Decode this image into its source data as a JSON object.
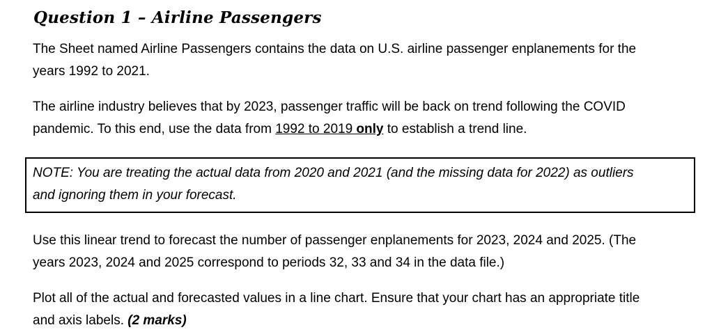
{
  "document": {
    "heading": "Question 1 – Airline Passengers",
    "para1": {
      "line1": "The Sheet named Airline Passengers contains the data on U.S. airline passenger enplanements for the",
      "line2": "years 1992 to 2021."
    },
    "para2": {
      "line1": "The airline industry believes that by 2023, passenger traffic will be back on trend following the COVID",
      "line2_run1": "pandemic. To this end, use the data from ",
      "line2_run2_underlined": "1992 to 2019 ",
      "line2_run3_bold_underlined": "only",
      "line2_run4": " to establish a trend line."
    },
    "note": {
      "line1": "NOTE: You are treating the actual data from 2020 and 2021 (and the missing data for 2022) as outliers",
      "line2": "and ignoring them in your forecast."
    },
    "para3": {
      "line1": "Use this linear trend to forecast the number of passenger enplanements for 2023, 2024 and 2025. (The",
      "line2": "years 2023, 2024 and 2025 correspond to periods 32, 33 and 34 in the data file.)"
    },
    "para4": {
      "line1": "Plot all of the actual and forecasted values in a line chart. Ensure that your chart has an appropriate title",
      "line2_run1": "and axis labels. ",
      "line2_run2_bold_italic": "(2 marks)"
    }
  }
}
